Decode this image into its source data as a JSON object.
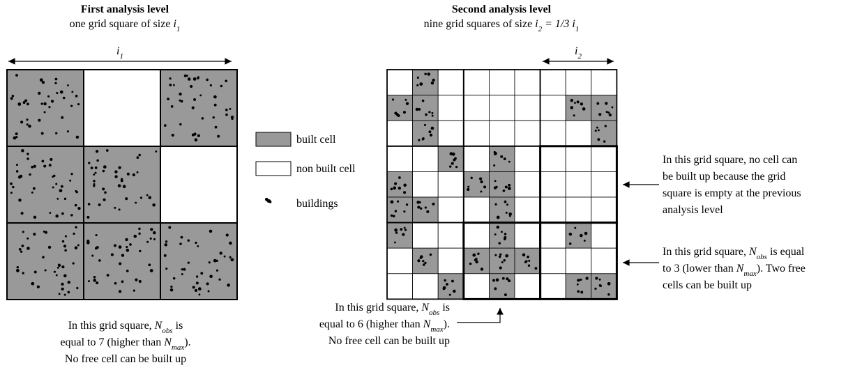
{
  "left": {
    "title": "First analysis level",
    "subtitle": [
      [
        "r",
        "one grid square of size "
      ],
      [
        "i",
        "i"
      ],
      [
        "s",
        "1"
      ]
    ],
    "dimension": [
      [
        "i",
        "i"
      ],
      [
        "s",
        "1"
      ]
    ]
  },
  "right": {
    "title": "Second analysis level",
    "subtitle": [
      [
        "r",
        "nine grid squares of size "
      ],
      [
        "i",
        "i"
      ],
      [
        "s",
        "2"
      ],
      [
        "i",
        " = 1/3 "
      ],
      [
        "i",
        "i"
      ],
      [
        "s",
        "1"
      ]
    ],
    "dimension": [
      [
        "i",
        "i"
      ],
      [
        "s",
        "2"
      ]
    ]
  },
  "legend": [
    "built cell",
    "non built cell",
    "buildings"
  ],
  "notes": [
    {
      "lines": [
        [
          [
            "r",
            "In this grid square, "
          ],
          [
            "i",
            "N"
          ],
          [
            "s",
            "obs"
          ],
          [
            "r",
            " is"
          ]
        ],
        [
          [
            "r",
            "equal to 7 (higher than "
          ],
          [
            "i",
            "N"
          ],
          [
            "s",
            "max"
          ],
          [
            "r",
            ")."
          ]
        ],
        [
          [
            "r",
            "No free cell can be built up"
          ]
        ]
      ]
    },
    {
      "lines": [
        [
          [
            "r",
            "In this grid square, "
          ],
          [
            "i",
            "N"
          ],
          [
            "s",
            "obs"
          ],
          [
            "r",
            " is"
          ]
        ],
        [
          [
            "r",
            "equal to 6 (higher than "
          ],
          [
            "i",
            "N"
          ],
          [
            "s",
            "max"
          ],
          [
            "r",
            ")."
          ]
        ],
        [
          [
            "r",
            "No free cell can be built up"
          ]
        ]
      ]
    },
    {
      "lines": [
        [
          [
            "r",
            "In this grid square, no cell can"
          ]
        ],
        [
          [
            "r",
            "be built up because the grid"
          ]
        ],
        [
          [
            "r",
            "square is empty at the previous"
          ]
        ],
        [
          [
            "r",
            "analysis level"
          ]
        ]
      ]
    },
    {
      "lines": [
        [
          [
            "r",
            "In this grid square, "
          ],
          [
            "i",
            "N"
          ],
          [
            "s",
            "obs"
          ],
          [
            "r",
            " is equal"
          ]
        ],
        [
          [
            "r",
            "to 3 (lower than "
          ],
          [
            "i",
            "N"
          ],
          [
            "s",
            "max"
          ],
          [
            "r",
            "). Two free"
          ]
        ],
        [
          [
            "r",
            "cells can be built up"
          ]
        ]
      ]
    }
  ]
}
